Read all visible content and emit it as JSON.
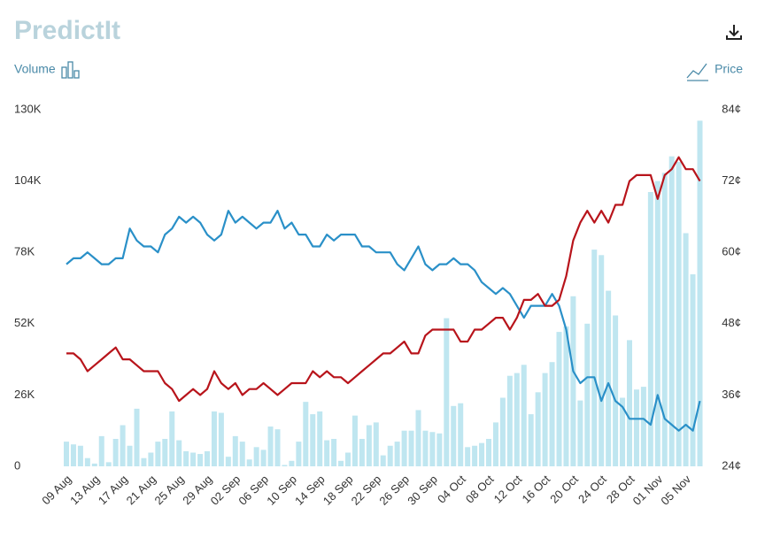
{
  "header": {
    "logo": "PredictIt"
  },
  "chart_data": {
    "type": "combo",
    "y_title": "Volume",
    "y2_title": "Price",
    "categories": [
      "09 Aug",
      null,
      null,
      null,
      "13 Aug",
      null,
      null,
      null,
      "17 Aug",
      null,
      null,
      null,
      "21 Aug",
      null,
      null,
      null,
      "25 Aug",
      null,
      null,
      null,
      "29 Aug",
      null,
      null,
      null,
      "02 Sep",
      null,
      null,
      null,
      "06 Sep",
      null,
      null,
      null,
      "10 Sep",
      null,
      null,
      null,
      "14 Sep",
      null,
      null,
      null,
      "18 Sep",
      null,
      null,
      null,
      "22 Sep",
      null,
      null,
      null,
      "26 Sep",
      null,
      null,
      null,
      "30 Sep",
      null,
      null,
      null,
      "04 Oct",
      null,
      null,
      null,
      "08 Oct",
      null,
      null,
      null,
      "12 Oct",
      null,
      null,
      null,
      "16 Oct",
      null,
      null,
      null,
      "20 Oct",
      null,
      null,
      null,
      "24 Oct",
      null,
      null,
      null,
      "28 Oct",
      null,
      null,
      null,
      "01 Nov",
      null,
      null,
      null,
      "05 Nov",
      null,
      null
    ],
    "ylim": [
      0,
      130000
    ],
    "yticks": [
      0,
      {
        "value": 26000,
        "label": "26K"
      },
      {
        "value": 52000,
        "label": "52K"
      },
      {
        "value": 78000,
        "label": "78K"
      },
      {
        "value": 104000,
        "label": "104K"
      },
      {
        "value": 130000,
        "label": "130K"
      }
    ],
    "y2lim": [
      24,
      84
    ],
    "y2ticks": [
      {
        "value": 24,
        "label": "24¢"
      },
      {
        "value": 36,
        "label": "36¢"
      },
      {
        "value": 48,
        "label": "48¢"
      },
      {
        "value": 60,
        "label": "60¢"
      },
      {
        "value": 72,
        "label": "72¢"
      },
      {
        "value": 84,
        "label": "84¢"
      }
    ],
    "series": [
      {
        "kind": "bar",
        "color": "#bfe6f0",
        "values": [
          9000,
          8000,
          7500,
          3000,
          1000,
          11000,
          1500,
          10000,
          15000,
          7500,
          21000,
          3000,
          5000,
          9000,
          10000,
          20000,
          9500,
          5500,
          5000,
          4500,
          5500,
          20000,
          19500,
          3500,
          11000,
          9000,
          2500,
          7000,
          6000,
          14500,
          13500,
          500,
          2000,
          9000,
          23500,
          19000,
          20000,
          9500,
          10000,
          2000,
          5000,
          18500,
          10000,
          15000,
          16000,
          4000,
          7500,
          9000,
          13000,
          13000,
          20500,
          13000,
          12500,
          12000,
          54000,
          22000,
          23000,
          7000,
          7500,
          8500,
          10000,
          16000,
          25000,
          33000,
          34000,
          37000,
          19000,
          27000,
          34000,
          38000,
          49000,
          51000,
          62000,
          24000,
          52000,
          79000,
          77000,
          64000,
          55000,
          25000,
          46000,
          28000,
          29000,
          100000,
          104000,
          107000,
          113000,
          111000,
          85000,
          70000,
          126000
        ]
      },
      {
        "kind": "line",
        "axis": "y2",
        "color": "#2a90c8",
        "values": [
          58,
          59,
          59,
          60,
          59,
          58,
          58,
          59,
          59,
          64,
          62,
          61,
          61,
          60,
          63,
          64,
          66,
          65,
          66,
          65,
          63,
          62,
          63,
          67,
          65,
          66,
          65,
          64,
          65,
          65,
          67,
          64,
          65,
          63,
          63,
          61,
          61,
          63,
          62,
          63,
          63,
          63,
          61,
          61,
          60,
          60,
          60,
          58,
          57,
          59,
          61,
          58,
          57,
          58,
          58,
          59,
          58,
          58,
          57,
          55,
          54,
          53,
          54,
          53,
          51,
          49,
          51,
          51,
          51,
          53,
          51,
          47,
          40,
          38,
          39,
          39,
          35,
          38,
          35,
          34,
          32,
          32,
          32,
          31,
          36,
          32,
          31,
          30,
          31,
          30,
          35
        ]
      },
      {
        "kind": "line",
        "axis": "y2",
        "color": "#b8141b",
        "values": [
          43,
          43,
          42,
          40,
          41,
          42,
          43,
          44,
          42,
          42,
          41,
          40,
          40,
          40,
          38,
          37,
          35,
          36,
          37,
          36,
          37,
          40,
          38,
          37,
          38,
          36,
          37,
          37,
          38,
          37,
          36,
          37,
          38,
          38,
          38,
          40,
          39,
          40,
          39,
          39,
          38,
          39,
          40,
          41,
          42,
          43,
          43,
          44,
          45,
          43,
          43,
          46,
          47,
          47,
          47,
          47,
          45,
          45,
          47,
          47,
          48,
          49,
          49,
          47,
          49,
          52,
          52,
          53,
          51,
          51,
          52,
          56,
          62,
          65,
          67,
          65,
          67,
          65,
          68,
          68,
          72,
          73,
          73,
          73,
          69,
          73,
          74,
          76,
          74,
          74,
          72
        ]
      }
    ]
  }
}
